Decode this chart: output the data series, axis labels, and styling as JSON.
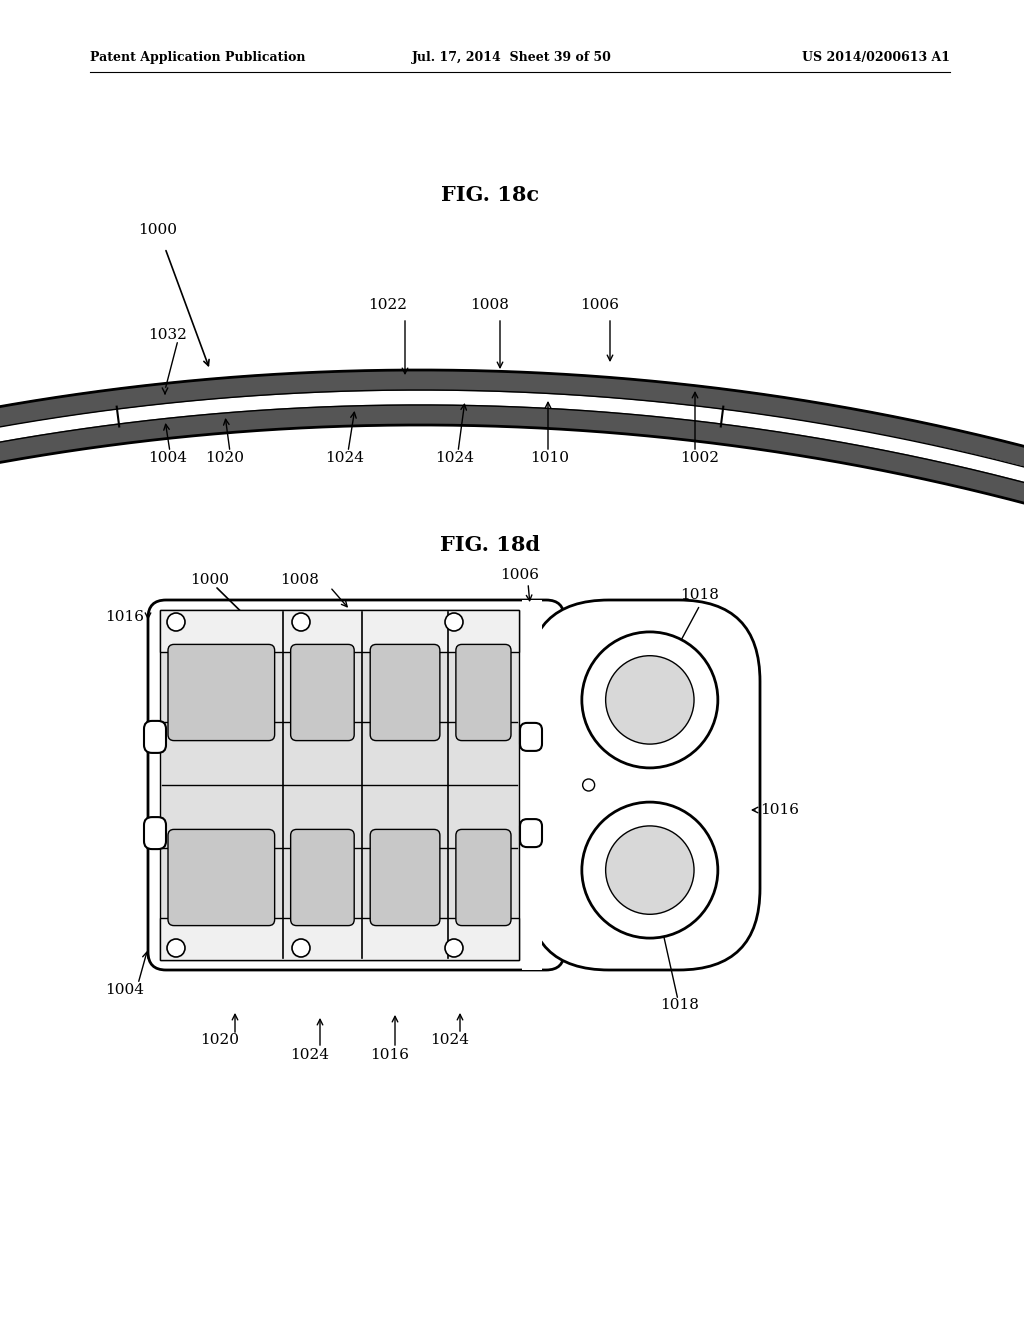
{
  "header_left": "Patent Application Publication",
  "header_mid": "Jul. 17, 2014  Sheet 39 of 50",
  "header_right": "US 2014/0200613 A1",
  "fig1_title": "FIG. 18c",
  "fig2_title": "FIG. 18d",
  "bg_color": "#ffffff"
}
